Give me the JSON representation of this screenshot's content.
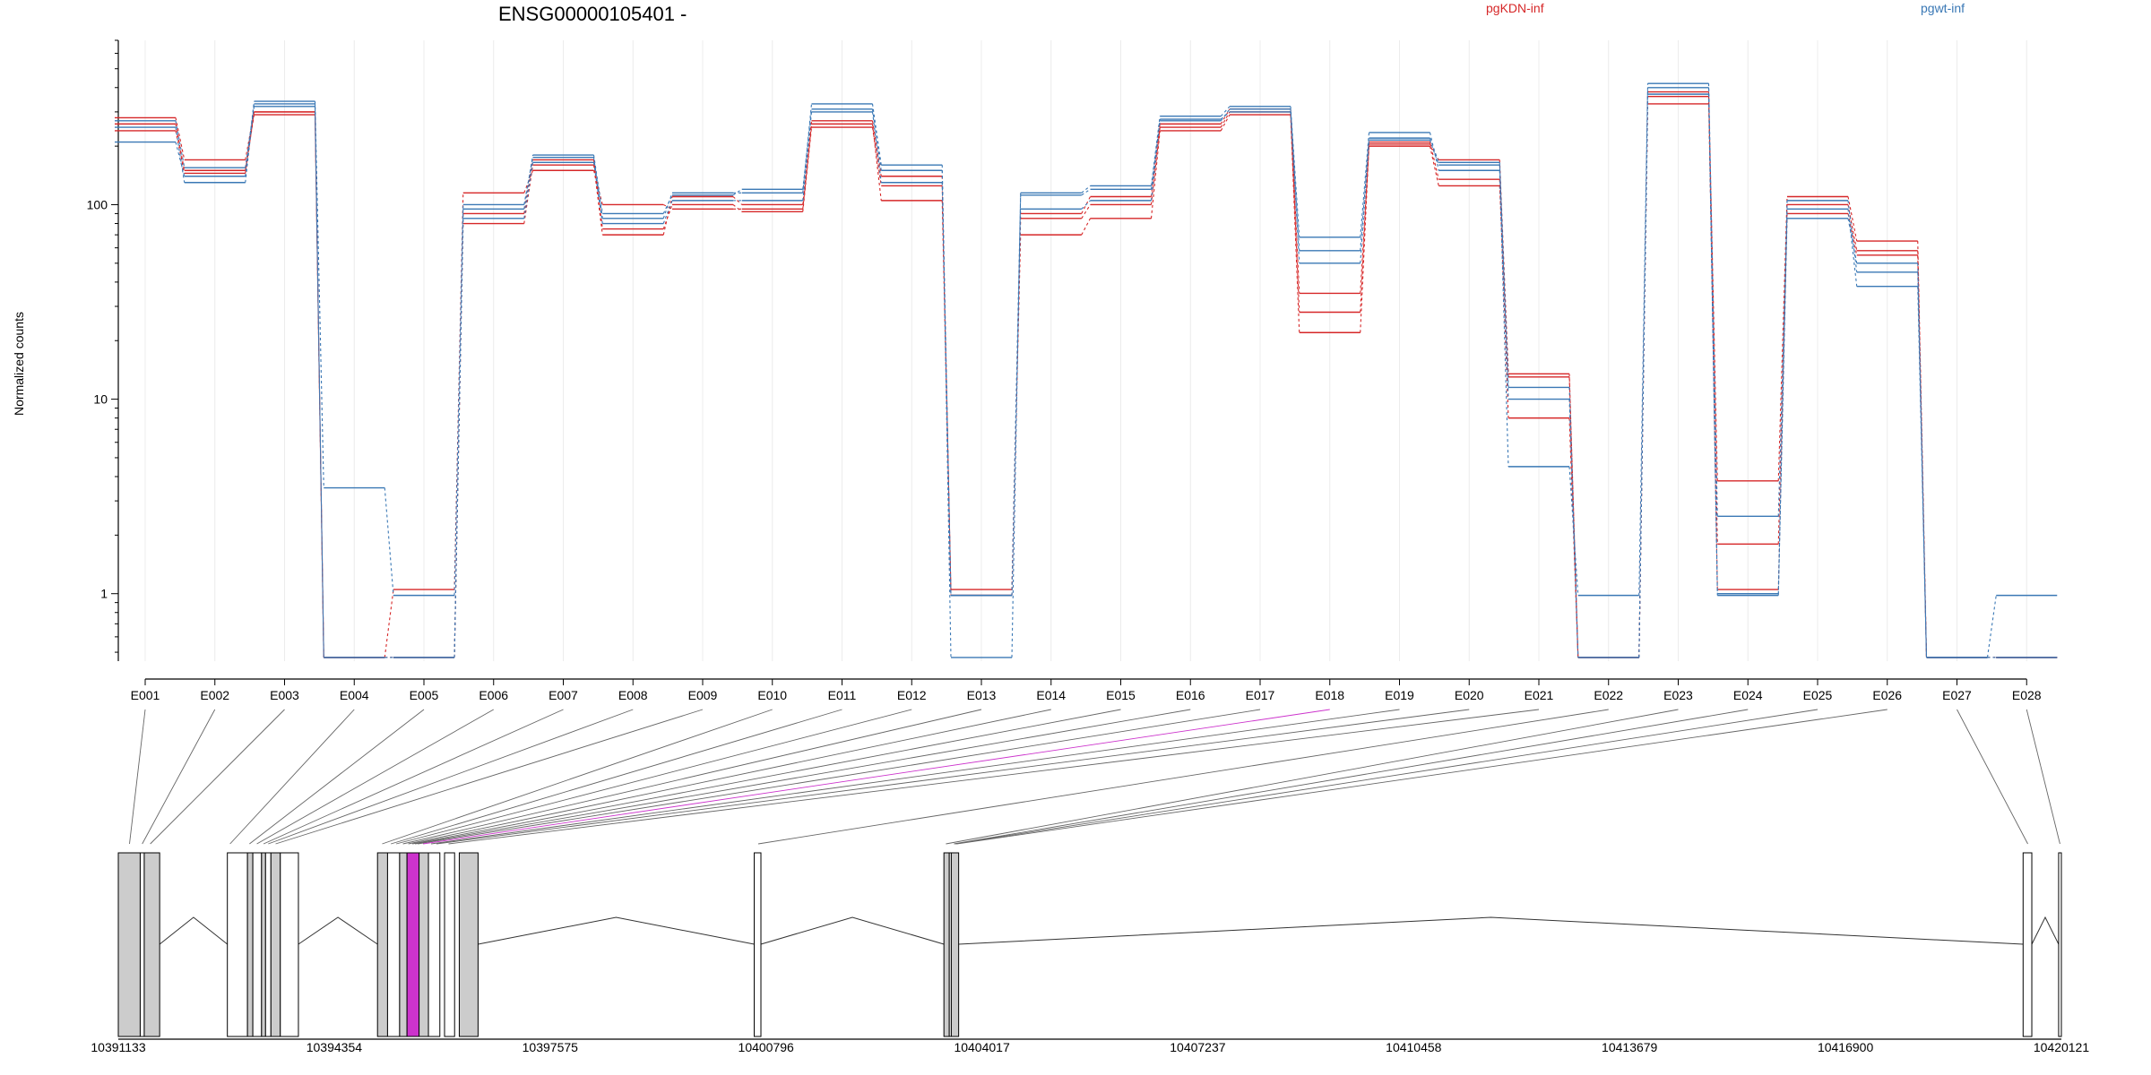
{
  "chart_data": {
    "type": "line",
    "title": "ENSG00000105401 -",
    "ylabel": "Normalized counts",
    "yscale": "log",
    "ylim": [
      0.45,
      700
    ],
    "yticks": [
      1,
      10,
      100
    ],
    "ytick_labels": [
      "1",
      "10",
      "100"
    ],
    "categories": [
      "E001",
      "E002",
      "E003",
      "E004",
      "E005",
      "E006",
      "E007",
      "E008",
      "E009",
      "E010",
      "E011",
      "E012",
      "E013",
      "E014",
      "E015",
      "E016",
      "E017",
      "E018",
      "E019",
      "E020",
      "E021",
      "E022",
      "E023",
      "E024",
      "E025",
      "E026",
      "E027",
      "E028"
    ],
    "legend": [
      {
        "name": "pgKDN-inf",
        "color": "#d62728"
      },
      {
        "name": "pgwt-inf",
        "color": "#3a78b5"
      }
    ],
    "series": [
      {
        "group": "pgKDN-inf",
        "color": "#d62728",
        "values": [
          280,
          170,
          300,
          0.47,
          1.05,
          115,
          150,
          100,
          95,
          95,
          260,
          105,
          1.05,
          70,
          85,
          240,
          290,
          22,
          205,
          170,
          13.5,
          0.47,
          360,
          3.8,
          110,
          65,
          0.47,
          0.47
        ]
      },
      {
        "group": "pgKDN-inf",
        "color": "#d62728",
        "values": [
          260,
          150,
          290,
          0.47,
          0.47,
          90,
          170,
          75,
          100,
          92,
          250,
          125,
          0.98,
          85,
          100,
          250,
          300,
          28,
          210,
          135,
          8,
          0.47,
          330,
          1.8,
          90,
          55,
          0.47,
          0.47
        ]
      },
      {
        "group": "pgKDN-inf",
        "color": "#d62728",
        "values": [
          240,
          145,
          300,
          0.47,
          0.47,
          80,
          160,
          70,
          110,
          100,
          270,
          140,
          0.98,
          90,
          110,
          260,
          310,
          35,
          200,
          125,
          13,
          0.47,
          380,
          1.05,
          100,
          58,
          0.47,
          0.47
        ]
      },
      {
        "group": "pgwt-inf",
        "color": "#3a78b5",
        "values": [
          210,
          140,
          340,
          3.5,
          0.98,
          100,
          175,
          85,
          115,
          115,
          330,
          160,
          0.47,
          115,
          125,
          285,
          320,
          68,
          235,
          150,
          4.5,
          0.98,
          420,
          2.5,
          95,
          38,
          0.47,
          0.98
        ]
      },
      {
        "group": "pgwt-inf",
        "color": "#3a78b5",
        "values": [
          250,
          130,
          330,
          0.47,
          0.47,
          95,
          180,
          90,
          112,
          120,
          310,
          150,
          0.98,
          112,
          120,
          270,
          310,
          58,
          220,
          165,
          10,
          0.47,
          400,
          0.98,
          105,
          45,
          0.47,
          0.47
        ]
      },
      {
        "group": "pgwt-inf",
        "color": "#3a78b5",
        "values": [
          270,
          155,
          320,
          0.47,
          0.47,
          85,
          165,
          80,
          105,
          105,
          300,
          130,
          0.98,
          95,
          105,
          275,
          300,
          50,
          215,
          160,
          11.5,
          0.47,
          370,
          1.0,
          85,
          50,
          0.47,
          0.47
        ]
      }
    ],
    "genomic_axis": {
      "tick_labels": [
        "10391133",
        "10394354",
        "10397575",
        "10400796",
        "10404017",
        "10407237",
        "10410458",
        "10413679",
        "10416900",
        "10420121"
      ],
      "tick_values": [
        10391133,
        10394354,
        10397575,
        10400796,
        10404017,
        10407237,
        10410458,
        10413679,
        10416900,
        10420121
      ],
      "range": [
        10391133,
        10420121
      ]
    },
    "gene_model": {
      "exons": [
        {
          "start": 10391133,
          "end": 10391460,
          "fill": "#cccccc"
        },
        {
          "start": 10391460,
          "end": 10391520,
          "fill": "#ffffff"
        },
        {
          "start": 10391520,
          "end": 10391750,
          "fill": "#cccccc"
        },
        {
          "start": 10392760,
          "end": 10393060,
          "fill": "#ffffff"
        },
        {
          "start": 10393060,
          "end": 10393140,
          "fill": "#cccccc"
        },
        {
          "start": 10393140,
          "end": 10393270,
          "fill": "#ffffff"
        },
        {
          "start": 10393270,
          "end": 10393330,
          "fill": "#cccccc"
        },
        {
          "start": 10393330,
          "end": 10393410,
          "fill": "#ffffff"
        },
        {
          "start": 10393410,
          "end": 10393550,
          "fill": "#cccccc"
        },
        {
          "start": 10393550,
          "end": 10393820,
          "fill": "#ffffff"
        },
        {
          "start": 10395000,
          "end": 10395150,
          "fill": "#cccccc"
        },
        {
          "start": 10395150,
          "end": 10395330,
          "fill": "#ffffff"
        },
        {
          "start": 10395330,
          "end": 10395440,
          "fill": "#cccccc"
        },
        {
          "start": 10395440,
          "end": 10395620,
          "fill": "#cc33cc"
        },
        {
          "start": 10395620,
          "end": 10395760,
          "fill": "#cccccc"
        },
        {
          "start": 10395760,
          "end": 10395930,
          "fill": "#ffffff"
        },
        {
          "start": 10396000,
          "end": 10396150,
          "fill": "#ffffff"
        },
        {
          "start": 10396220,
          "end": 10396500,
          "fill": "#cccccc"
        },
        {
          "start": 10400620,
          "end": 10400720,
          "fill": "#ffffff"
        },
        {
          "start": 10403450,
          "end": 10403530,
          "fill": "#cccccc"
        },
        {
          "start": 10403530,
          "end": 10403560,
          "fill": "#ffffff"
        },
        {
          "start": 10403560,
          "end": 10403670,
          "fill": "#cccccc"
        },
        {
          "start": 10419550,
          "end": 10419680,
          "fill": "#ffffff"
        },
        {
          "start": 10420080,
          "end": 10420121,
          "fill": "#ffffff"
        }
      ],
      "introns": [
        [
          10391750,
          10392760
        ],
        [
          10393820,
          10395000
        ],
        [
          10396500,
          10400620
        ],
        [
          10400720,
          10403450
        ],
        [
          10403670,
          10419550
        ],
        [
          10419680,
          10420080
        ]
      ],
      "exon_links": [
        10391300,
        10391490,
        10391610,
        10392800,
        10393090,
        10393200,
        10393300,
        10393370,
        10393480,
        10395070,
        10395200,
        10395280,
        10395380,
        10395460,
        10395520,
        10395560,
        10395600,
        10395680,
        10395800,
        10395880,
        10396060,
        10400680,
        10403480,
        10403600,
        10403620,
        10403640,
        10419620,
        10420100
      ],
      "highlight_link_index": 17,
      "highlight_color": "#cc33cc"
    }
  }
}
